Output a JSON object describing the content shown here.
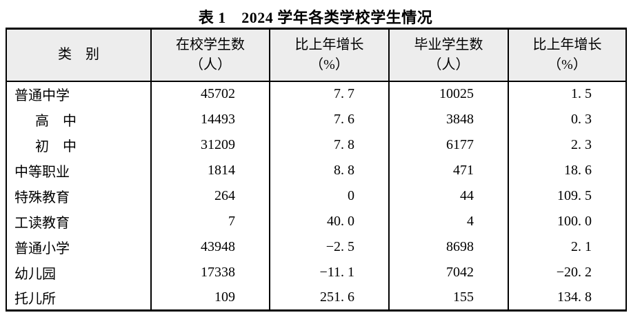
{
  "title": "表 1　2024 学年各类学校学生情况",
  "colors": {
    "border": "#000000",
    "header_bg": "#ededed",
    "text": "#000000",
    "page_bg": "#ffffff"
  },
  "table": {
    "headers": [
      {
        "line1": "类　别",
        "line2": ""
      },
      {
        "line1": "在校学生数",
        "line2": "（人）"
      },
      {
        "line1": "比上年增长",
        "line2": "（%）"
      },
      {
        "line1": "毕业学生数",
        "line2": "（人）"
      },
      {
        "line1": "比上年增长",
        "line2": "（%）"
      }
    ],
    "rows": [
      {
        "category": "普通中学",
        "indent": false,
        "enrolled": "45702",
        "enrolled_growth": "7. 7",
        "graduates": "10025",
        "graduates_growth": "1. 5"
      },
      {
        "category": "高　中",
        "indent": true,
        "enrolled": "14493",
        "enrolled_growth": "7. 6",
        "graduates": "3848",
        "graduates_growth": "0. 3"
      },
      {
        "category": "初　中",
        "indent": true,
        "enrolled": "31209",
        "enrolled_growth": "7. 8",
        "graduates": "6177",
        "graduates_growth": "2. 3"
      },
      {
        "category": "中等职业",
        "indent": false,
        "enrolled": "1814",
        "enrolled_growth": "8. 8",
        "graduates": "471",
        "graduates_growth": "18. 6"
      },
      {
        "category": "特殊教育",
        "indent": false,
        "enrolled": "264",
        "enrolled_growth": "0",
        "graduates": "44",
        "graduates_growth": "109. 5"
      },
      {
        "category": "工读教育",
        "indent": false,
        "enrolled": "7",
        "enrolled_growth": "40. 0",
        "graduates": "4",
        "graduates_growth": "100. 0"
      },
      {
        "category": "普通小学",
        "indent": false,
        "enrolled": "43948",
        "enrolled_growth": "−2. 5",
        "graduates": "8698",
        "graduates_growth": "2. 1"
      },
      {
        "category": "幼儿园",
        "indent": false,
        "enrolled": "17338",
        "enrolled_growth": "−11. 1",
        "graduates": "7042",
        "graduates_growth": "−20. 2"
      },
      {
        "category": "托儿所",
        "indent": false,
        "enrolled": "109",
        "enrolled_growth": "251. 6",
        "graduates": "155",
        "graduates_growth": "134. 8"
      }
    ]
  }
}
